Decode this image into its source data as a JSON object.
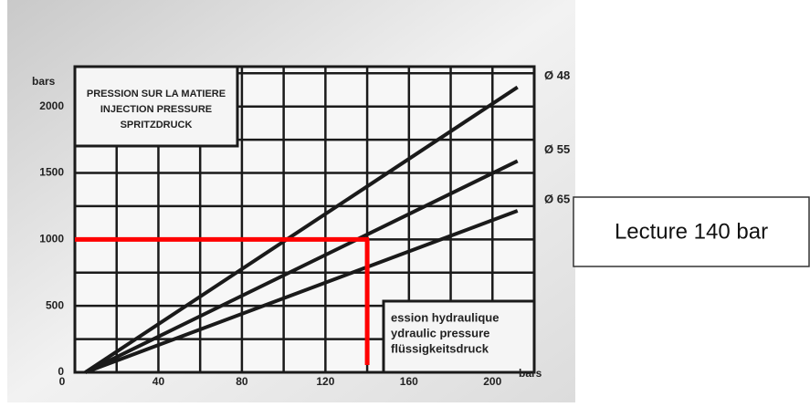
{
  "chart_data": {
    "type": "line",
    "title": [
      "PRESSION SUR LA MATIERE",
      "INJECTION PRESSURE",
      "SPRITZDRUCK"
    ],
    "x_label": [
      "ession hydraulique",
      "ydraulic pressure",
      "flüssigkeitsdruck"
    ],
    "x_unit": "bars",
    "y_unit": "bars",
    "xlim": [
      0,
      220
    ],
    "xticks": [
      0,
      40,
      80,
      120,
      160,
      200
    ],
    "ylim": [
      0,
      2300
    ],
    "yticks": [
      0,
      500,
      1000,
      1500,
      2000
    ],
    "xgrid": [
      20,
      40,
      60,
      80,
      100,
      120,
      140,
      160,
      180,
      200
    ],
    "ygrid": [
      250,
      500,
      750,
      1000,
      1250,
      1500,
      1750,
      2000,
      2250
    ],
    "x": [
      5,
      212
    ],
    "series": [
      {
        "name": "Ø 48",
        "color": "#1a1a1a",
        "values": [
          0,
          2145
        ]
      },
      {
        "name": "Ø 55",
        "color": "#1a1a1a",
        "values": [
          0,
          1590
        ]
      },
      {
        "name": "Ø 65",
        "color": "#1a1a1a",
        "values": [
          0,
          1215
        ]
      }
    ],
    "reading": {
      "x": 140,
      "y": 1000,
      "color": "#ff0000",
      "label": "Lecture 140 bar"
    }
  }
}
